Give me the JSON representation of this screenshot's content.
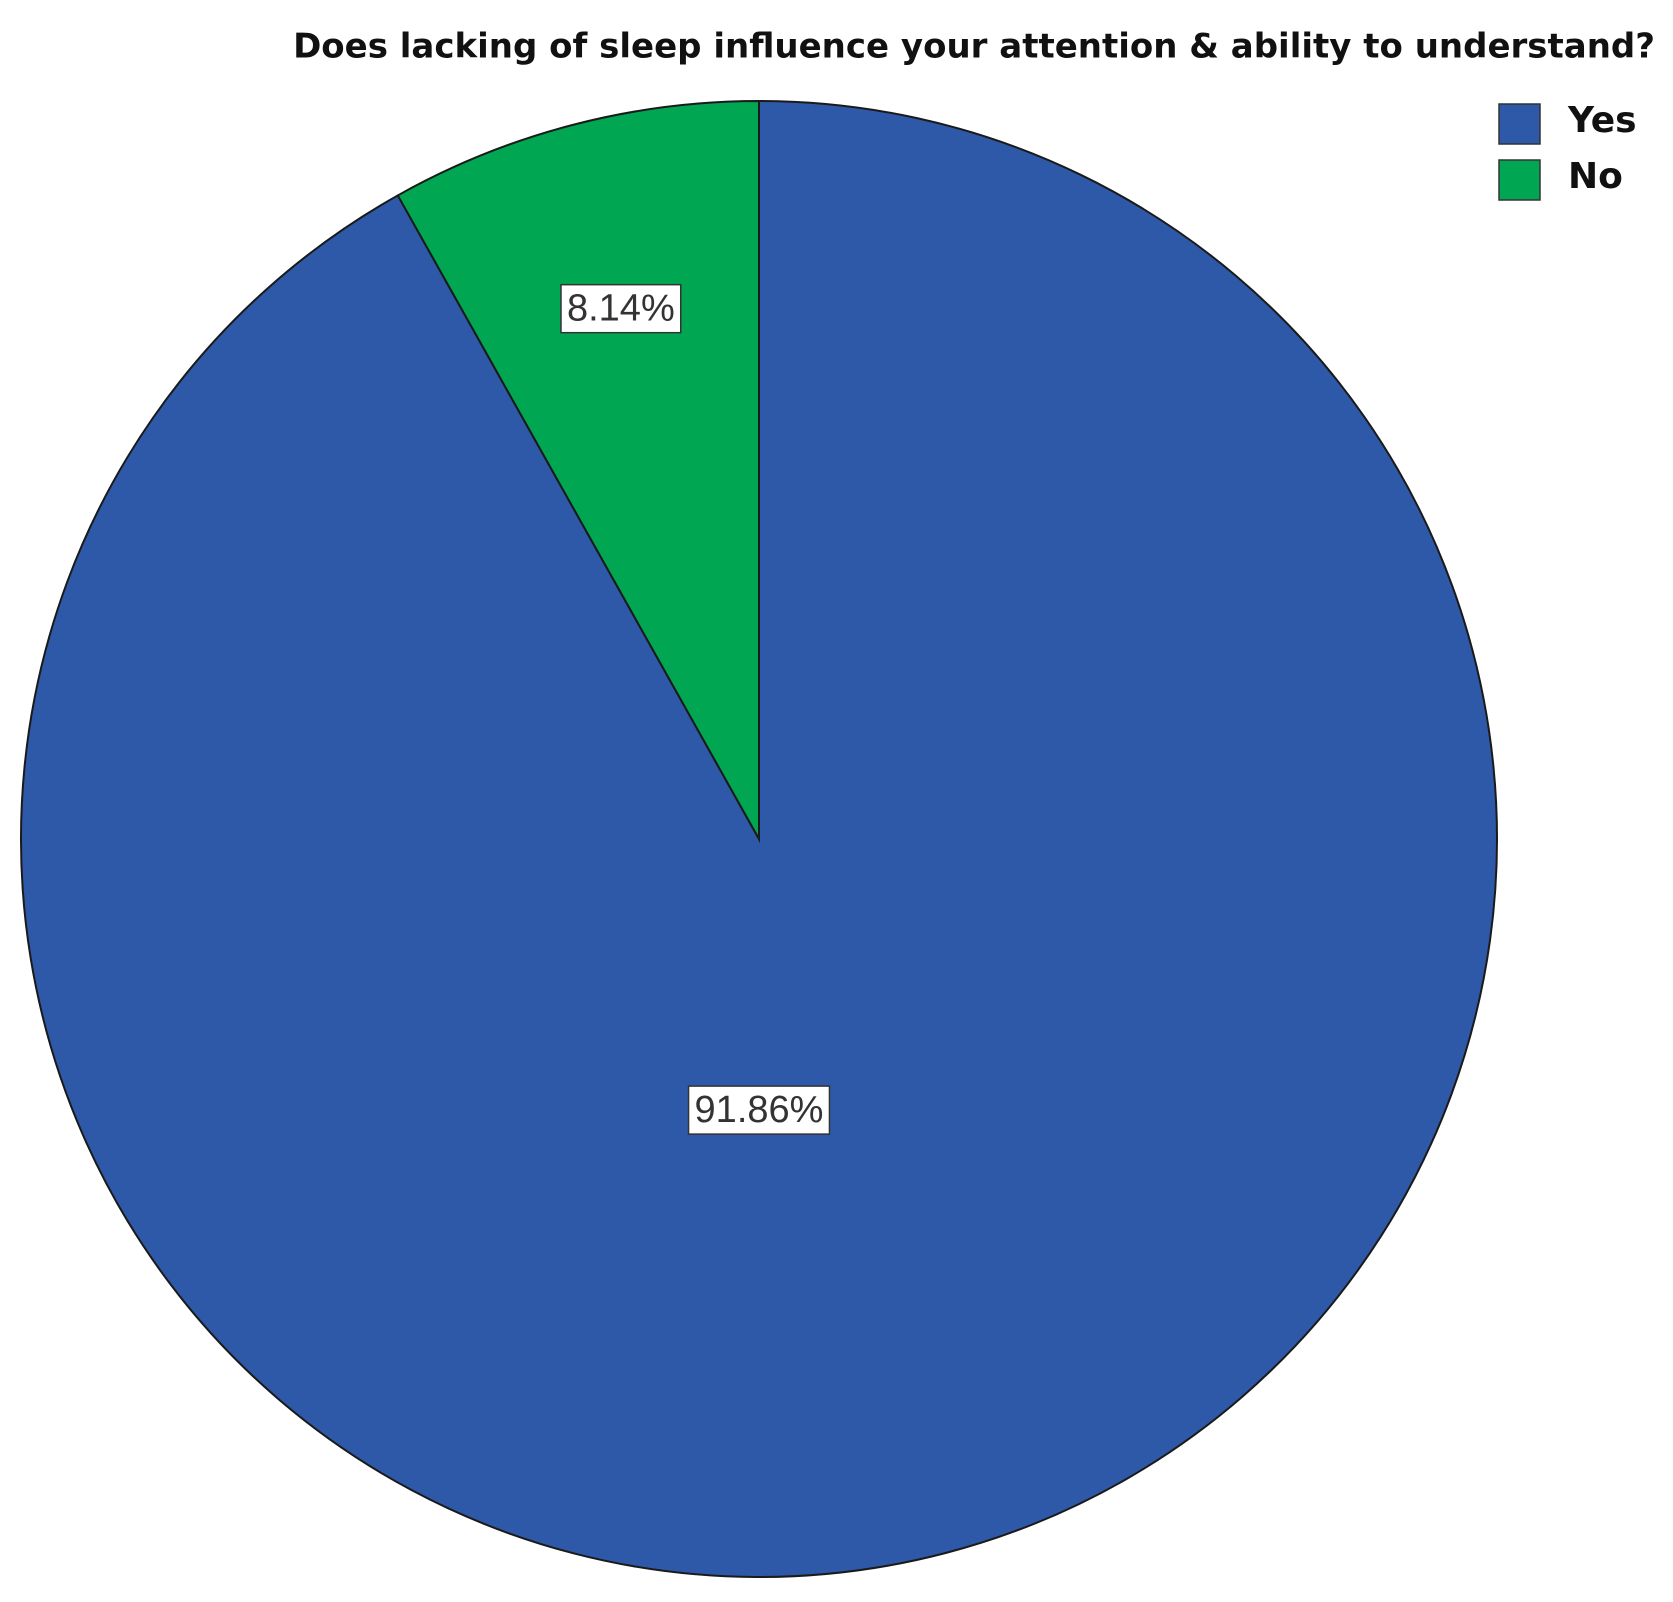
{
  "chart_data": {
    "type": "pie",
    "title": "Does lacking of sleep influence your attention & ability to understand?",
    "categories": [
      "Yes",
      "No"
    ],
    "values": [
      91.86,
      8.14
    ],
    "value_labels": [
      "91.86%",
      "8.14%"
    ],
    "colors": [
      "#2e59a8",
      "#00a651"
    ],
    "legend": "upper right"
  }
}
